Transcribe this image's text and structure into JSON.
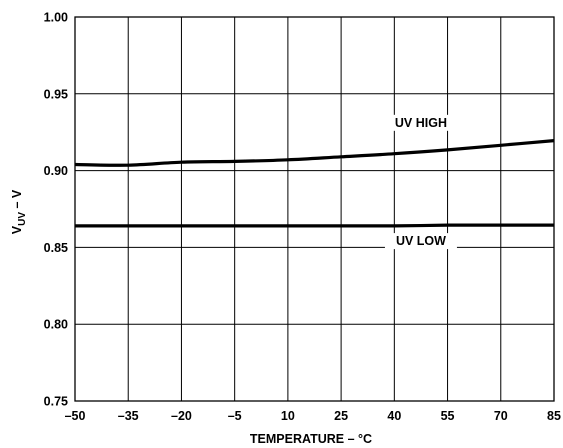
{
  "chart_data": {
    "type": "line",
    "title": "",
    "xlabel": "TEMPERATURE – °C",
    "ylabel": {
      "main": "V",
      "sub": "UV",
      "rest": " – V"
    },
    "xlim": [
      -50,
      85
    ],
    "ylim": [
      0.75,
      1.0
    ],
    "x_ticks": [
      -50,
      -35,
      -20,
      -5,
      10,
      25,
      40,
      55,
      70,
      85
    ],
    "y_ticks": [
      0.75,
      0.8,
      0.85,
      0.9,
      0.95,
      1.0
    ],
    "x_tick_labels": [
      "–50",
      "–35",
      "–20",
      "–5",
      "10",
      "25",
      "40",
      "55",
      "70",
      "85"
    ],
    "y_tick_labels": [
      "0.75",
      "0.80",
      "0.85",
      "0.90",
      "0.95",
      "1.00"
    ],
    "grid": true,
    "series": [
      {
        "name": "UV HIGH",
        "x": [
          -50,
          -35,
          -20,
          -5,
          10,
          25,
          40,
          55,
          70,
          85
        ],
        "y": [
          0.904,
          0.9035,
          0.9055,
          0.906,
          0.907,
          0.909,
          0.911,
          0.9135,
          0.9165,
          0.9195
        ]
      },
      {
        "name": "UV LOW",
        "x": [
          -50,
          -35,
          -20,
          -5,
          10,
          25,
          40,
          55,
          70,
          85
        ],
        "y": [
          0.864,
          0.864,
          0.864,
          0.864,
          0.864,
          0.864,
          0.864,
          0.8645,
          0.8645,
          0.8645
        ]
      }
    ]
  }
}
